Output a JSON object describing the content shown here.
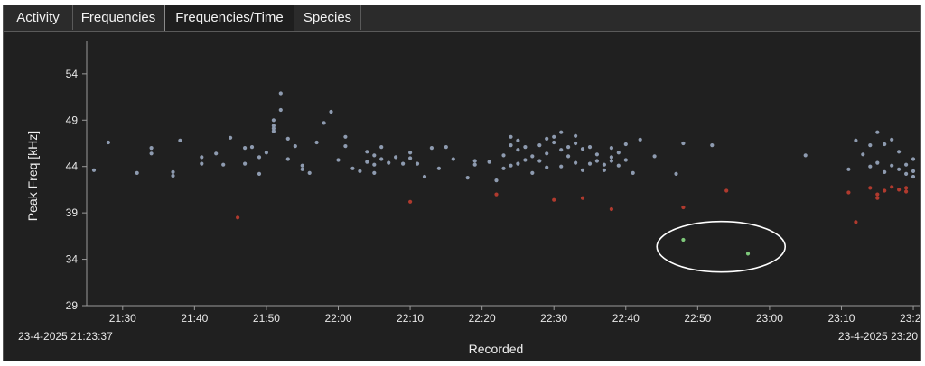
{
  "tabs": [
    {
      "label": "Activity",
      "active": false
    },
    {
      "label": "Frequencies",
      "active": false
    },
    {
      "label": "Frequencies/Time",
      "active": true
    },
    {
      "label": "Species",
      "active": false
    }
  ],
  "colors": {
    "background": "#202020",
    "point_primary": "#8e9bb0",
    "point_secondary": "#b03a2e",
    "point_tertiary": "#7ec87a",
    "highlight_ellipse": "#ffffff"
  },
  "chart_data": {
    "type": "scatter",
    "xlabel": "Recorded",
    "ylabel": "Peak Freq [kHz]",
    "ylim": [
      29,
      57
    ],
    "xlim": [
      "21:25",
      "23:21"
    ],
    "yticks": [
      29,
      34,
      39,
      44,
      49,
      54
    ],
    "xticks": [
      "21:30",
      "21:40",
      "21:50",
      "22:00",
      "22:10",
      "22:20",
      "22:30",
      "22:40",
      "22:50",
      "23:00",
      "23:10",
      "23:20"
    ],
    "x_start_label": "23-4-2025 21:23:37",
    "x_end_label": "23-4-2025 23:20",
    "grid": false,
    "annotation": "ellipse around the green points near 22:48–22:58, 34–36 kHz",
    "series": [
      {
        "color": "#8e9bb0",
        "points": [
          [
            "21:26",
            43.6
          ],
          [
            "21:28",
            46.6
          ],
          [
            "21:32",
            43.3
          ],
          [
            "21:34",
            46.0
          ],
          [
            "21:34",
            45.4
          ],
          [
            "21:37",
            43.0
          ],
          [
            "21:37",
            43.4
          ],
          [
            "21:38",
            46.8
          ],
          [
            "21:41",
            45.0
          ],
          [
            "21:41",
            44.3
          ],
          [
            "21:43",
            45.4
          ],
          [
            "21:44",
            44.2
          ],
          [
            "21:45",
            47.1
          ],
          [
            "21:47",
            46.0
          ],
          [
            "21:47",
            44.3
          ],
          [
            "21:48",
            46.1
          ],
          [
            "21:49",
            45.0
          ],
          [
            "21:49",
            43.2
          ],
          [
            "21:50",
            45.5
          ],
          [
            "21:51",
            48.4
          ],
          [
            "21:51",
            48.1
          ],
          [
            "21:51",
            49.0
          ],
          [
            "21:51",
            47.8
          ],
          [
            "21:52",
            51.9
          ],
          [
            "21:52",
            50.1
          ],
          [
            "21:53",
            44.8
          ],
          [
            "21:53",
            47.0
          ],
          [
            "21:54",
            46.2
          ],
          [
            "21:55",
            44.1
          ],
          [
            "21:55",
            43.7
          ],
          [
            "21:56",
            43.3
          ],
          [
            "21:57",
            46.6
          ],
          [
            "21:58",
            48.7
          ],
          [
            "21:59",
            49.9
          ],
          [
            "22:00",
            44.7
          ],
          [
            "22:01",
            47.2
          ],
          [
            "22:01",
            46.2
          ],
          [
            "22:02",
            43.8
          ],
          [
            "22:03",
            43.5
          ],
          [
            "22:04",
            45.6
          ],
          [
            "22:04",
            44.5
          ],
          [
            "22:05",
            44.2
          ],
          [
            "22:05",
            45.2
          ],
          [
            "22:05",
            43.3
          ],
          [
            "22:06",
            44.8
          ],
          [
            "22:06",
            46.1
          ],
          [
            "22:07",
            44.4
          ],
          [
            "22:08",
            45.0
          ],
          [
            "22:09",
            44.3
          ],
          [
            "22:10",
            45.5
          ],
          [
            "22:10",
            44.9
          ],
          [
            "22:11",
            44.3
          ],
          [
            "22:12",
            42.9
          ],
          [
            "22:13",
            46.0
          ],
          [
            "22:14",
            43.8
          ],
          [
            "22:15",
            46.1
          ],
          [
            "22:16",
            44.8
          ],
          [
            "22:18",
            42.8
          ],
          [
            "22:19",
            44.6
          ],
          [
            "22:19",
            44.2
          ],
          [
            "22:21",
            44.5
          ],
          [
            "22:22",
            42.5
          ],
          [
            "22:23",
            43.8
          ],
          [
            "22:23",
            45.2
          ],
          [
            "22:24",
            46.3
          ],
          [
            "22:24",
            47.2
          ],
          [
            "22:24",
            44.1
          ],
          [
            "22:25",
            45.8
          ],
          [
            "22:25",
            46.8
          ],
          [
            "22:25",
            44.3
          ],
          [
            "22:26",
            44.7
          ],
          [
            "22:26",
            46.1
          ],
          [
            "22:27",
            43.3
          ],
          [
            "22:27",
            45.1
          ],
          [
            "22:28",
            44.6
          ],
          [
            "22:28",
            46.3
          ],
          [
            "22:29",
            47.0
          ],
          [
            "22:29",
            45.4
          ],
          [
            "22:29",
            43.9
          ],
          [
            "22:30",
            46.6
          ],
          [
            "22:30",
            47.2
          ],
          [
            "22:31",
            44.0
          ],
          [
            "22:31",
            45.8
          ],
          [
            "22:31",
            47.7
          ],
          [
            "22:32",
            45.1
          ],
          [
            "22:32",
            46.1
          ],
          [
            "22:33",
            44.4
          ],
          [
            "22:33",
            47.3
          ],
          [
            "22:33",
            46.5
          ],
          [
            "22:34",
            43.6
          ],
          [
            "22:34",
            45.9
          ],
          [
            "22:35",
            46.1
          ],
          [
            "22:35",
            44.3
          ],
          [
            "22:36",
            45.3
          ],
          [
            "22:36",
            44.6
          ],
          [
            "22:37",
            43.6
          ],
          [
            "22:37",
            44.2
          ],
          [
            "22:38",
            45.0
          ],
          [
            "22:38",
            46.0
          ],
          [
            "22:38",
            44.6
          ],
          [
            "22:39",
            44.1
          ],
          [
            "22:39",
            45.5
          ],
          [
            "22:40",
            46.4
          ],
          [
            "22:40",
            44.7
          ],
          [
            "22:41",
            43.3
          ],
          [
            "22:42",
            46.9
          ],
          [
            "22:44",
            45.1
          ],
          [
            "22:47",
            43.2
          ],
          [
            "22:48",
            46.5
          ],
          [
            "22:52",
            46.3
          ],
          [
            "23:05",
            45.2
          ],
          [
            "23:11",
            43.7
          ],
          [
            "23:12",
            46.8
          ],
          [
            "23:13",
            45.3
          ],
          [
            "23:14",
            44.0
          ],
          [
            "23:14",
            46.3
          ],
          [
            "23:15",
            47.7
          ],
          [
            "23:15",
            44.4
          ],
          [
            "23:16",
            46.4
          ],
          [
            "23:16",
            43.4
          ],
          [
            "23:17",
            44.1
          ],
          [
            "23:17",
            46.9
          ],
          [
            "23:18",
            43.7
          ],
          [
            "23:18",
            45.6
          ],
          [
            "23:19",
            43.2
          ],
          [
            "23:19",
            44.2
          ],
          [
            "23:20",
            43.5
          ],
          [
            "23:20",
            44.8
          ],
          [
            "23:20",
            42.9
          ]
        ]
      },
      {
        "color": "#b03a2e",
        "points": [
          [
            "21:46",
            38.5
          ],
          [
            "22:10",
            40.2
          ],
          [
            "22:22",
            41.0
          ],
          [
            "22:30",
            40.4
          ],
          [
            "22:34",
            40.6
          ],
          [
            "22:38",
            39.4
          ],
          [
            "22:48",
            39.6
          ],
          [
            "22:54",
            41.4
          ],
          [
            "23:11",
            41.2
          ],
          [
            "23:12",
            38.0
          ],
          [
            "23:14",
            41.7
          ],
          [
            "23:15",
            41.0
          ],
          [
            "23:15",
            40.6
          ],
          [
            "23:16",
            41.4
          ],
          [
            "23:17",
            41.8
          ],
          [
            "23:18",
            41.5
          ],
          [
            "23:19",
            41.7
          ],
          [
            "23:19",
            41.3
          ]
        ]
      },
      {
        "color": "#7ec87a",
        "points": [
          [
            "22:48",
            36.1
          ],
          [
            "22:57",
            34.6
          ]
        ]
      }
    ]
  }
}
